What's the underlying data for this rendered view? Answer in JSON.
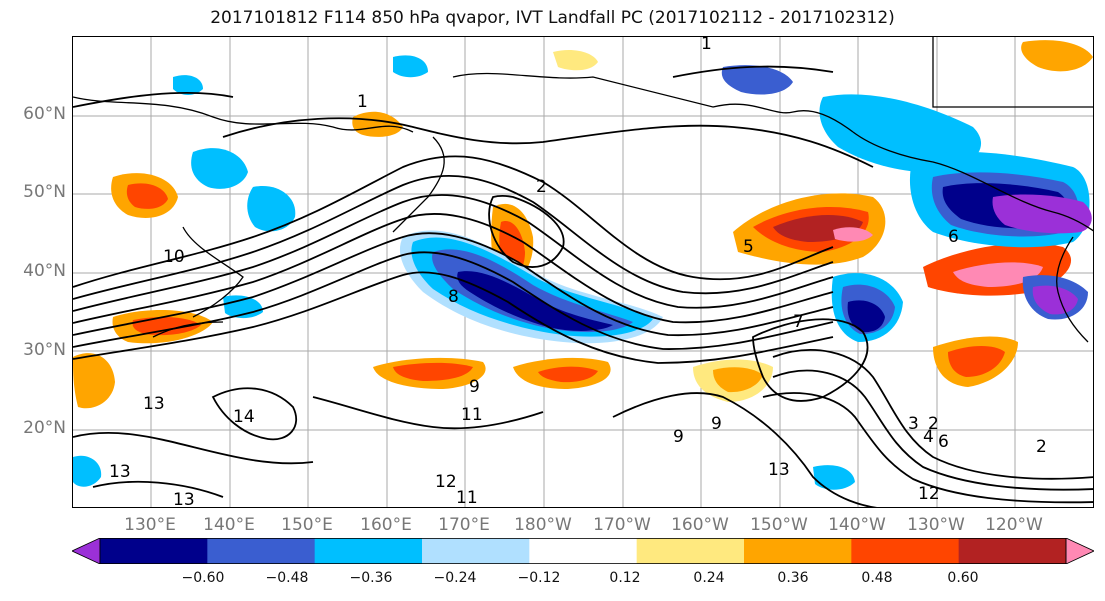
{
  "title": "2017101812 F114 850 hPa qvapor, IVT Landfall PC (2017102112 - 2017102312)",
  "lat_labels": [
    "60°N",
    "50°N",
    "40°N",
    "30°N",
    "20°N"
  ],
  "lon_labels": [
    "130°E",
    "140°E",
    "150°E",
    "160°E",
    "170°E",
    "180°W",
    "170°W",
    "160°W",
    "150°W",
    "140°W",
    "130°W",
    "120°W"
  ],
  "contour_labels": [
    "1",
    "1",
    "2",
    "2",
    "5",
    "9",
    "10",
    "11",
    "11",
    "12",
    "12",
    "13",
    "13",
    "13",
    "13",
    "14",
    "8",
    "6",
    "9",
    "9",
    "3",
    "2",
    "4",
    "6",
    "7"
  ],
  "colorbar": {
    "tick_labels": [
      "−0.60",
      "−0.48",
      "−0.36",
      "−0.24",
      "−0.12",
      "0.12",
      "0.24",
      "0.36",
      "0.48",
      "0.60"
    ],
    "colors": [
      "#9b30d8",
      "#00008b",
      "#3a5ed0",
      "#00bfff",
      "#b0e0ff",
      "#ffffff",
      "#ffe97f",
      "#ffa500",
      "#ff4500",
      "#b22222",
      "#ff89b4"
    ]
  },
  "map_colors": {
    "neg_strong": "#00008b",
    "neg_mid": "#3a5ed0",
    "neg_light": "#00bfff",
    "neg_pale": "#b0e0ff",
    "purple": "#9b30d8",
    "pos_pale": "#ffe97f",
    "pos_orange": "#ffa500",
    "pos_red": "#ff4500",
    "pos_dark": "#b22222",
    "pos_pink": "#ff89b4"
  }
}
